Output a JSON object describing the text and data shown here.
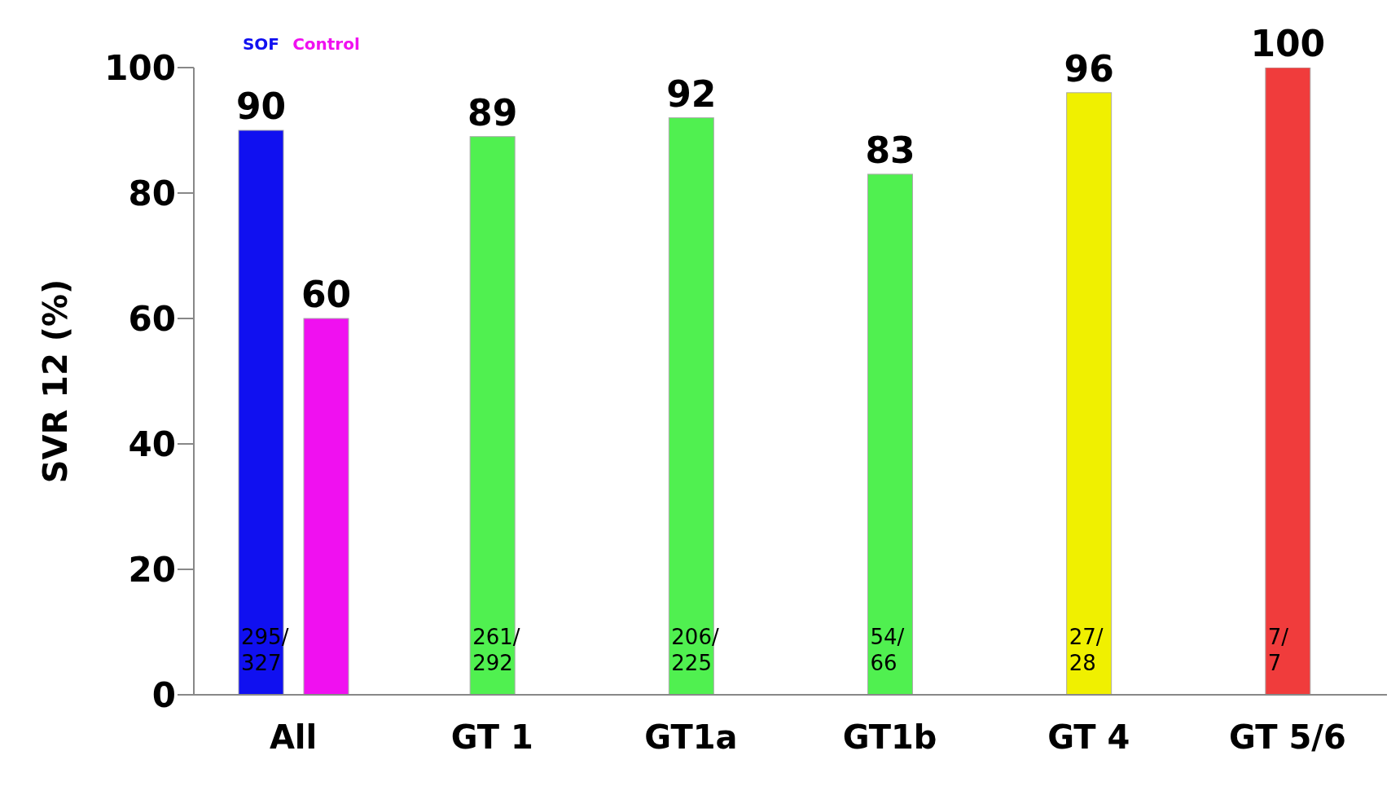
{
  "chart_data": {
    "type": "bar",
    "ylabel": "SVR 12 (%)",
    "categories": [
      "All",
      "GT 1",
      "GT1a",
      "GT1b",
      "GT 4",
      "GT 5/6"
    ],
    "series": [
      {
        "name": "SOF",
        "colors": [
          "#1010f0",
          "#50f050",
          "#50f050",
          "#50f050",
          "#f0f000",
          "#f03c3c"
        ],
        "values": [
          90,
          89,
          92,
          83,
          96,
          100
        ]
      },
      {
        "name": "Control",
        "color": "#f010f0",
        "values": [
          60,
          null,
          null,
          null,
          null,
          null
        ]
      }
    ],
    "ylim": [
      0,
      100
    ],
    "yticks": [
      0,
      20,
      40,
      60,
      80,
      100
    ],
    "data_labels": true,
    "annotations": [
      "295/327",
      "261/292",
      "206/225",
      "54/66",
      "27/28",
      "7/7"
    ]
  }
}
